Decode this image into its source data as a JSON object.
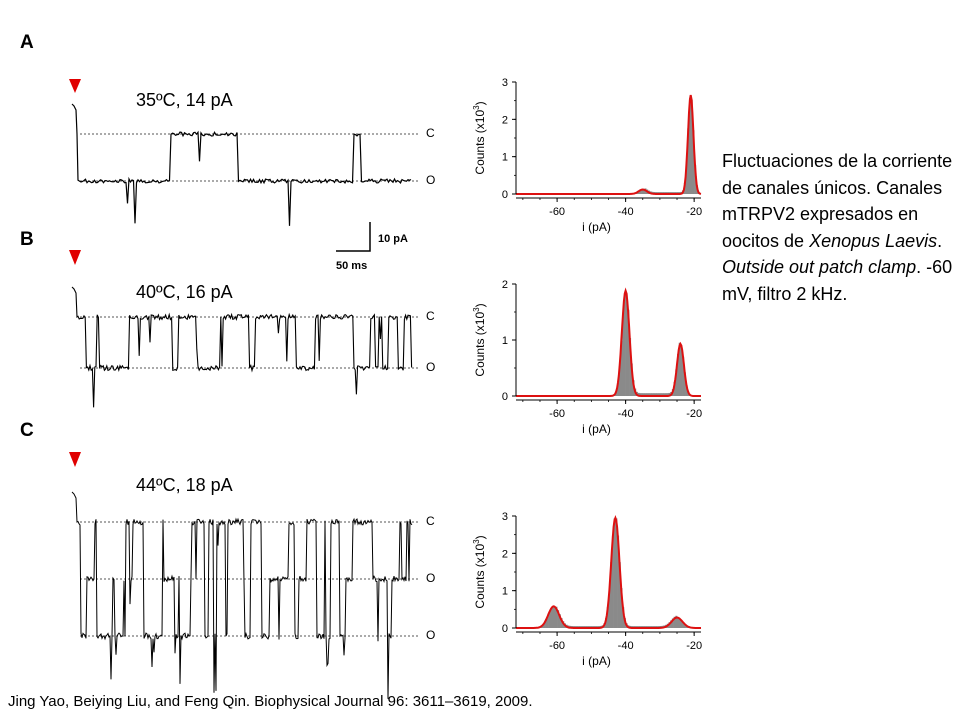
{
  "panels": [
    {
      "letter": "A",
      "condition": "35ºC, 14 pA",
      "trace_levels": [
        "C",
        "O"
      ],
      "histogram": {
        "x_ticks": [
          "-60",
          "-40",
          "-20"
        ],
        "y_ticks": [
          "0",
          "1",
          "2",
          "3"
        ],
        "xlabel": "i (pA)",
        "ylabel_main": "Counts (x10",
        "ylabel_exp": "3",
        "ylabel_end": ")",
        "xlim": [
          -72,
          -18
        ],
        "ylim": [
          0,
          3
        ],
        "peaks": [
          {
            "mean": -35,
            "sd": 1.2,
            "height": 0.12
          },
          {
            "mean": -21,
            "sd": 0.8,
            "height": 2.65
          }
        ]
      }
    },
    {
      "letter": "B",
      "condition": "40ºC, 16 pA",
      "trace_levels": [
        "C",
        "O"
      ],
      "histogram": {
        "x_ticks": [
          "-60",
          "-40",
          "-20"
        ],
        "y_ticks": [
          "0",
          "1",
          "2"
        ],
        "xlabel": "i (pA)",
        "ylabel_main": "Counts (x10",
        "ylabel_exp": "3",
        "ylabel_end": ")",
        "xlim": [
          -72,
          -18
        ],
        "ylim": [
          0,
          2
        ],
        "peaks": [
          {
            "mean": -40,
            "sd": 1.1,
            "height": 1.88
          },
          {
            "mean": -24,
            "sd": 1.0,
            "height": 0.93
          }
        ]
      }
    },
    {
      "letter": "C",
      "condition": "44ºC, 18 pA",
      "trace_levels": [
        "C",
        "O",
        "O"
      ],
      "histogram": {
        "x_ticks": [
          "-60",
          "-40",
          "-20"
        ],
        "y_ticks": [
          "0",
          "1",
          "2",
          "3"
        ],
        "xlabel": "i (pA)",
        "ylabel_main": "Counts (x10",
        "ylabel_exp": "3",
        "ylabel_end": ")",
        "xlim": [
          -72,
          -18
        ],
        "ylim": [
          0,
          3
        ],
        "peaks": [
          {
            "mean": -61,
            "sd": 1.6,
            "height": 0.58
          },
          {
            "mean": -43,
            "sd": 1.2,
            "height": 2.95
          },
          {
            "mean": -25,
            "sd": 1.6,
            "height": 0.28
          }
        ]
      }
    }
  ],
  "scale_bar": {
    "vertical": "10 pA",
    "horizontal": "50 ms"
  },
  "caption": {
    "part1": "Fluctuaciones de la corriente de canales únicos. Canales mTRPV2 expresados en oocitos de ",
    "italic1": "Xenopus Laevis",
    "part2": ". ",
    "italic2": "Outside out patch clamp",
    "part3": ". -60 mV, filtro 2 kHz."
  },
  "citation": "Jing Yao, Beiying Liu, and Feng Qin. Biophysical Journal 96: 3611–3619, 2009.",
  "colors": {
    "marker": "#e00000",
    "fit": "#dd1111",
    "bars": "#8a8a8a"
  }
}
